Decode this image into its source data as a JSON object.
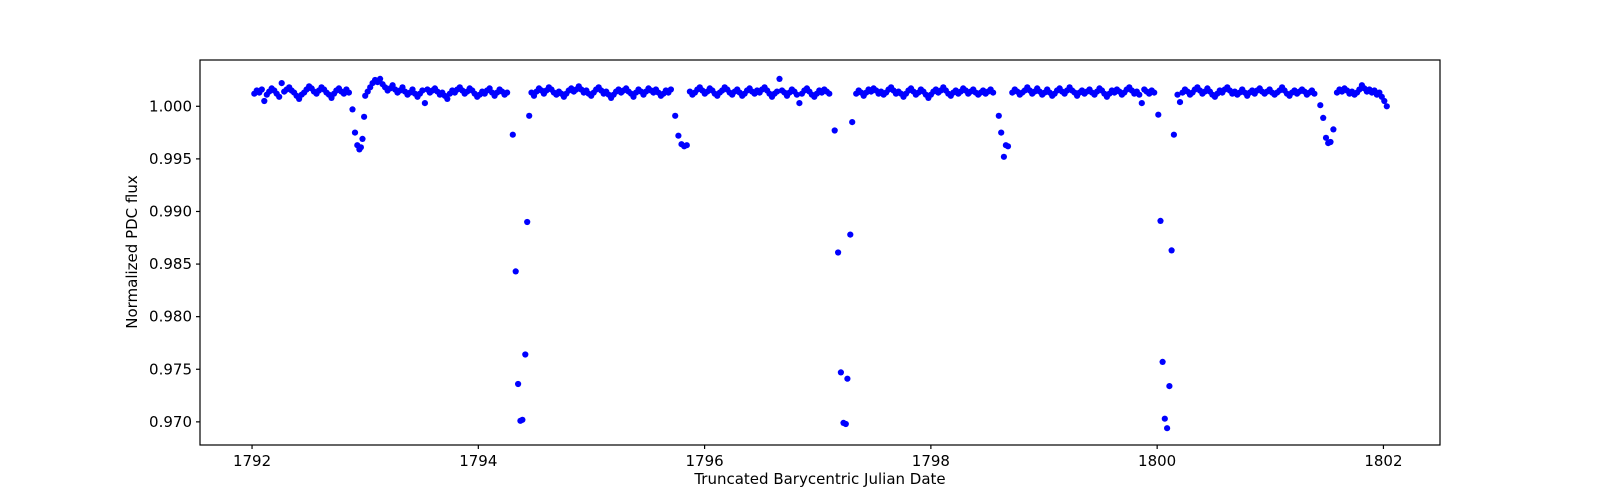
{
  "window": {
    "background": "#ffffff"
  },
  "chart_data": {
    "type": "scatter",
    "title": "",
    "xlabel": "Truncated Barycentric Julian Date",
    "ylabel": "Normalized PDC flux",
    "grid": false,
    "legend": null,
    "axis_color": "#000000",
    "marker": {
      "style": "point",
      "color": "#0000ff",
      "radius_px": 3.1
    },
    "xlim": [
      1791.54,
      1802.5
    ],
    "ylim": [
      0.9678,
      1.0044
    ],
    "xticks": [
      1792,
      1794,
      1796,
      1798,
      1800,
      1802
    ],
    "xtick_labels": [
      "1792",
      "1794",
      "1796",
      "1798",
      "1800",
      "1802"
    ],
    "yticks": [
      1.0,
      0.995,
      0.99,
      0.985,
      0.98,
      0.975,
      0.97
    ],
    "ytick_labels": [
      "1.000",
      "0.995",
      "0.990",
      "0.985",
      "0.980",
      "0.975",
      "0.970"
    ],
    "events_summary": {
      "deep_transit_centers_btjd": [
        1794.37,
        1797.23,
        1800.07
      ],
      "deep_transit_depth_flux": 0.9697,
      "shallow_dip_centers_btjd": [
        1792.95,
        1795.79,
        1798.65,
        1801.5
      ],
      "shallow_dip_depth_flux": 0.9957,
      "baseline_flux_level": 1.0012
    },
    "baseline": {
      "flux_encoding": "flux = 1 + value * 1e-4",
      "segments": [
        {
          "x_start": 1792.02,
          "x_step": 0.022,
          "dflux_e4": [
            12,
            15,
            13,
            16,
            5,
            11,
            14,
            17,
            15,
            12,
            9,
            22,
            14,
            16,
            18,
            15,
            13,
            10,
            7,
            11,
            13,
            16,
            19,
            17,
            14,
            12,
            15,
            18,
            16,
            13,
            11,
            8,
            12,
            15,
            17,
            14,
            12,
            16,
            13
          ]
        },
        {
          "x_start": 1793.0,
          "x_step": 0.022,
          "dflux_e4": [
            10,
            14,
            18,
            22,
            25,
            23,
            26,
            21,
            18,
            15,
            17,
            20,
            16,
            13,
            15,
            18,
            14,
            11,
            13,
            16,
            12,
            9,
            12,
            15,
            3,
            16,
            13,
            15,
            17,
            14,
            11,
            13,
            10,
            7,
            12,
            15,
            13,
            16,
            18,
            15,
            12,
            14,
            17,
            15,
            12,
            9,
            11,
            14,
            12,
            15,
            17,
            13,
            10,
            13,
            16,
            14,
            11,
            13
          ]
        },
        {
          "x_start": 1794.47,
          "x_step": 0.022,
          "dflux_e4": [
            13,
            10,
            14,
            17,
            15,
            12,
            15,
            18,
            16,
            13,
            11,
            14,
            12,
            9,
            12,
            15,
            17,
            14,
            16,
            19,
            16,
            13,
            15,
            12,
            10,
            13,
            16,
            18,
            15,
            12,
            14,
            11,
            8,
            11,
            14,
            16,
            13,
            15,
            17,
            14,
            12,
            9,
            13,
            16,
            14,
            11,
            14,
            17,
            15,
            13,
            16,
            13,
            10,
            12,
            15,
            13,
            16
          ]
        },
        {
          "x_start": 1795.87,
          "x_step": 0.022,
          "dflux_e4": [
            14,
            11,
            13,
            16,
            18,
            15,
            12,
            14,
            17,
            15,
            12,
            10,
            13,
            15,
            18,
            16,
            13,
            11,
            14,
            16,
            13,
            10,
            12,
            15,
            17,
            14,
            12,
            15,
            13,
            16,
            18,
            15,
            12,
            9,
            12,
            14,
            26,
            15,
            13,
            10,
            13,
            16,
            14,
            11,
            3,
            12,
            15,
            17,
            14,
            11,
            9,
            12,
            15,
            13,
            16,
            14,
            12
          ]
        },
        {
          "x_start": 1797.34,
          "x_step": 0.022,
          "dflux_e4": [
            12,
            15,
            13,
            10,
            13,
            16,
            14,
            17,
            15,
            12,
            14,
            11,
            13,
            16,
            18,
            15,
            12,
            14,
            12,
            9,
            12,
            15,
            17,
            14,
            11,
            13,
            16,
            14,
            11,
            8,
            11,
            14,
            16,
            13,
            15,
            18,
            15,
            12,
            10,
            13,
            15,
            12,
            14,
            17,
            15,
            12,
            14,
            16,
            13,
            11,
            13,
            15,
            12,
            14,
            16,
            13
          ]
        },
        {
          "x_start": 1798.72,
          "x_step": 0.022,
          "dflux_e4": [
            13,
            16,
            14,
            11,
            13,
            15,
            18,
            15,
            12,
            14,
            17,
            14,
            11,
            13,
            16,
            13,
            10,
            12,
            15,
            17,
            14,
            12,
            15,
            18,
            15,
            13,
            10,
            13,
            15,
            12,
            14,
            16,
            13,
            11,
            14,
            17,
            15,
            12,
            9,
            12,
            15,
            13,
            16,
            14,
            11,
            13,
            16,
            18,
            15,
            12,
            14,
            11,
            3,
            16,
            14,
            12,
            15,
            13
          ]
        },
        {
          "x_start": 1800.18,
          "x_step": 0.022,
          "dflux_e4": [
            11,
            4,
            13,
            16,
            14,
            11,
            13,
            16,
            18,
            15,
            12,
            14,
            17,
            14,
            11,
            9,
            12,
            15,
            13,
            16,
            18,
            15,
            12,
            14,
            11,
            13,
            16,
            13,
            10,
            13,
            15,
            12,
            15,
            17,
            14,
            12,
            14,
            16,
            13,
            11,
            13,
            15,
            18,
            15,
            12,
            10,
            13,
            15,
            12,
            14,
            16,
            14,
            11,
            13,
            15,
            12
          ]
        },
        {
          "x_start": 1801.59,
          "x_step": 0.022,
          "dflux_e4": [
            13,
            16,
            14,
            17,
            15,
            12,
            14,
            11,
            13,
            16,
            20,
            17,
            14,
            16,
            13,
            15,
            11,
            13,
            9,
            5,
            0
          ]
        }
      ]
    },
    "transit_events": [
      {
        "label": "shallow-dip-1",
        "points": [
          [
            1792.888,
            0.9997
          ],
          [
            1792.91,
            0.9975
          ],
          [
            1792.93,
            0.9963
          ],
          [
            1792.949,
            0.9959
          ],
          [
            1792.962,
            0.9961
          ],
          [
            1792.976,
            0.9969
          ],
          [
            1792.99,
            0.999
          ]
        ]
      },
      {
        "label": "deep-transit-1",
        "points": [
          [
            1794.305,
            0.9973
          ],
          [
            1794.33,
            0.9843
          ],
          [
            1794.352,
            0.9736
          ],
          [
            1794.372,
            0.9701
          ],
          [
            1794.39,
            0.9702
          ],
          [
            1794.415,
            0.9764
          ],
          [
            1794.432,
            0.989
          ],
          [
            1794.45,
            0.9991
          ]
        ]
      },
      {
        "label": "shallow-dip-2",
        "points": [
          [
            1795.74,
            0.9991
          ],
          [
            1795.768,
            0.9972
          ],
          [
            1795.796,
            0.9964
          ],
          [
            1795.82,
            0.9962
          ],
          [
            1795.843,
            0.9963
          ]
        ]
      },
      {
        "label": "deep-transit-2",
        "points": [
          [
            1797.15,
            0.9977
          ],
          [
            1797.18,
            0.9861
          ],
          [
            1797.205,
            0.9747
          ],
          [
            1797.228,
            0.9699
          ],
          [
            1797.248,
            0.9698
          ],
          [
            1797.262,
            0.9741
          ],
          [
            1797.288,
            0.9878
          ],
          [
            1797.305,
            0.9985
          ]
        ]
      },
      {
        "label": "shallow-dip-3",
        "points": [
          [
            1798.6,
            0.9991
          ],
          [
            1798.622,
            0.9975
          ],
          [
            1798.645,
            0.9952
          ],
          [
            1798.663,
            0.9963
          ],
          [
            1798.682,
            0.9962
          ]
        ]
      },
      {
        "label": "deep-transit-3",
        "points": [
          [
            1800.01,
            0.9992
          ],
          [
            1800.03,
            0.9891
          ],
          [
            1800.048,
            0.9757
          ],
          [
            1800.068,
            0.9703
          ],
          [
            1800.088,
            0.9694
          ],
          [
            1800.108,
            0.9734
          ],
          [
            1800.128,
            0.9863
          ],
          [
            1800.148,
            0.9973
          ]
        ]
      },
      {
        "label": "shallow-dip-4",
        "points": [
          [
            1801.442,
            1.0001
          ],
          [
            1801.468,
            0.9989
          ],
          [
            1801.492,
            0.997
          ],
          [
            1801.512,
            0.9965
          ],
          [
            1801.532,
            0.9966
          ],
          [
            1801.558,
            0.9978
          ]
        ]
      }
    ]
  }
}
